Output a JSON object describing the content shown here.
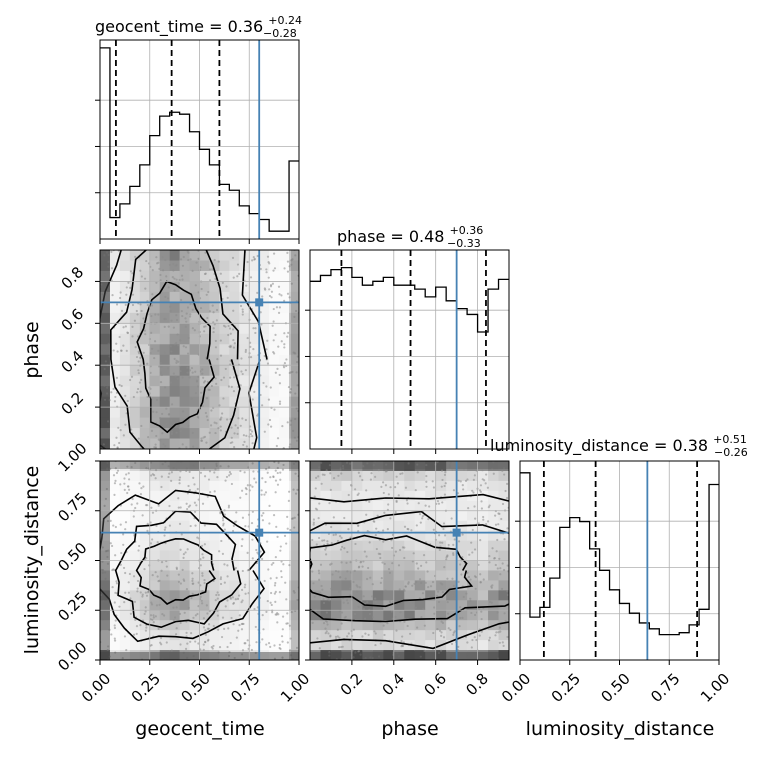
{
  "figure": {
    "type": "corner_plot",
    "truth_color": "#4682b4",
    "contour_color": "#000000",
    "grid": true
  },
  "chart_data": {
    "type": "corner",
    "parameters": [
      "geocent_time",
      "phase",
      "luminosity_distance"
    ],
    "truths": {
      "geocent_time": 0.8,
      "phase": 0.7,
      "luminosity_distance": 0.64
    },
    "titles": {
      "geocent_time": {
        "name": "geocent_time",
        "median": "0.36",
        "upper": "+0.24",
        "lower": "−0.28"
      },
      "phase": {
        "name": "phase",
        "median": "0.48",
        "upper": "+0.36",
        "lower": "−0.33"
      },
      "luminosity_distance": {
        "name": "luminosity_distance",
        "median": "0.38",
        "upper": "+0.51",
        "lower": "−0.26"
      }
    },
    "quantile_lines": {
      "geocent_time": [
        0.08,
        0.36,
        0.6
      ],
      "phase": [
        0.15,
        0.48,
        0.84
      ],
      "luminosity_distance": [
        0.12,
        0.38,
        0.89
      ]
    },
    "axes": {
      "geocent_time": {
        "range": [
          0,
          1
        ],
        "ticks": [
          0,
          0.25,
          0.5,
          0.75,
          1.0
        ],
        "tick_labels": [
          "0.00",
          "0.25",
          "0.50",
          "0.75",
          "1.00"
        ]
      },
      "phase": {
        "range": [
          0,
          0.95
        ],
        "ticks": [
          0.2,
          0.4,
          0.6,
          0.8
        ],
        "tick_labels": [
          "0.2",
          "0.4",
          "0.6",
          "0.8"
        ]
      },
      "luminosity_distance": {
        "range": [
          0,
          1
        ],
        "ticks": [
          0,
          0.25,
          0.5,
          0.75,
          1.0
        ],
        "tick_labels": [
          "0.00",
          "0.25",
          "0.50",
          "0.75",
          "1.00"
        ]
      }
    },
    "histograms": {
      "geocent_time": {
        "bins": [
          0,
          0.05,
          0.1,
          0.15,
          0.2,
          0.25,
          0.3,
          0.35,
          0.4,
          0.45,
          0.5,
          0.55,
          0.6,
          0.65,
          0.7,
          0.75,
          0.8,
          0.85,
          0.9,
          0.95,
          1.0
        ],
        "values": [
          0.98,
          0.11,
          0.18,
          0.27,
          0.38,
          0.53,
          0.63,
          0.65,
          0.64,
          0.55,
          0.46,
          0.38,
          0.28,
          0.25,
          0.17,
          0.13,
          0.1,
          0.04,
          0.04,
          0.4
        ]
      },
      "phase": {
        "bins": [
          0.0,
          0.05,
          0.1,
          0.15,
          0.2,
          0.25,
          0.3,
          0.35,
          0.4,
          0.45,
          0.5,
          0.55,
          0.6,
          0.65,
          0.7,
          0.75,
          0.8,
          0.85,
          0.9,
          0.95
        ],
        "values": [
          0.86,
          0.89,
          0.92,
          0.93,
          0.88,
          0.84,
          0.86,
          0.88,
          0.84,
          0.84,
          0.82,
          0.78,
          0.83,
          0.76,
          0.72,
          0.69,
          0.6,
          0.82,
          0.87
        ]
      },
      "luminosity_distance": {
        "bins": [
          0,
          0.05,
          0.1,
          0.15,
          0.2,
          0.25,
          0.3,
          0.35,
          0.4,
          0.45,
          0.5,
          0.55,
          0.6,
          0.65,
          0.7,
          0.75,
          0.8,
          0.85,
          0.9,
          0.95,
          1.0
        ],
        "values": [
          0.96,
          0.22,
          0.27,
          0.42,
          0.68,
          0.73,
          0.71,
          0.57,
          0.46,
          0.36,
          0.29,
          0.24,
          0.19,
          0.16,
          0.13,
          0.13,
          0.14,
          0.18,
          0.26,
          0.9
        ]
      }
    },
    "scatter_seeds": {
      "pair_1_0": 11,
      "pair_2_0": 23,
      "pair_2_1": 37
    }
  }
}
